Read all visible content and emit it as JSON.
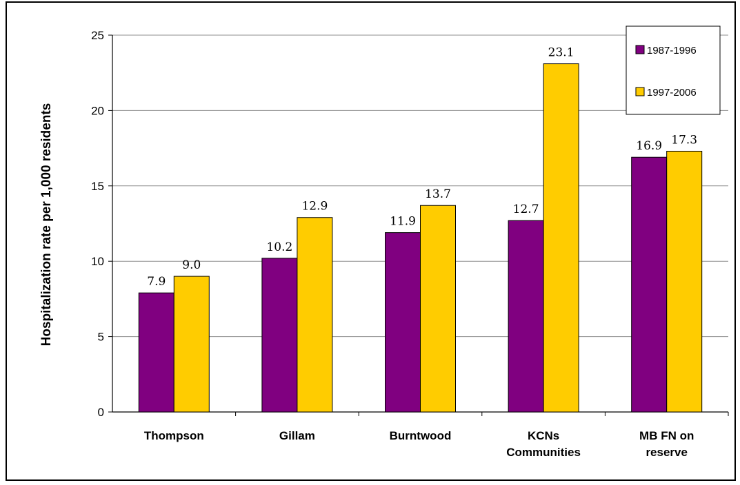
{
  "chart_data": {
    "type": "bar",
    "title": "",
    "xlabel": "",
    "ylabel": "Hospitalization rate per 1,000 residents",
    "categories": [
      [
        "Thompson"
      ],
      [
        "Gillam"
      ],
      [
        "Burntwood"
      ],
      [
        "KCNs",
        "Communities"
      ],
      [
        "MB FN on",
        "reserve"
      ]
    ],
    "series": [
      {
        "name": "1987-1996",
        "color": "#800080",
        "values": [
          7.9,
          10.2,
          11.9,
          12.7,
          16.9
        ],
        "labels": [
          "7.9",
          "10.2",
          "11.9",
          "12.7",
          "16.9"
        ]
      },
      {
        "name": "1997-2006",
        "color": "#ffcc00",
        "values": [
          9.0,
          12.9,
          13.7,
          23.1,
          17.3
        ],
        "labels": [
          "9.0",
          "12.9",
          "13.7",
          "23.1",
          "17.3"
        ]
      }
    ],
    "ylim": [
      0,
      25
    ],
    "yticks": [
      0,
      5,
      10,
      15,
      20,
      25
    ],
    "grid": true,
    "legend": "top-right"
  }
}
